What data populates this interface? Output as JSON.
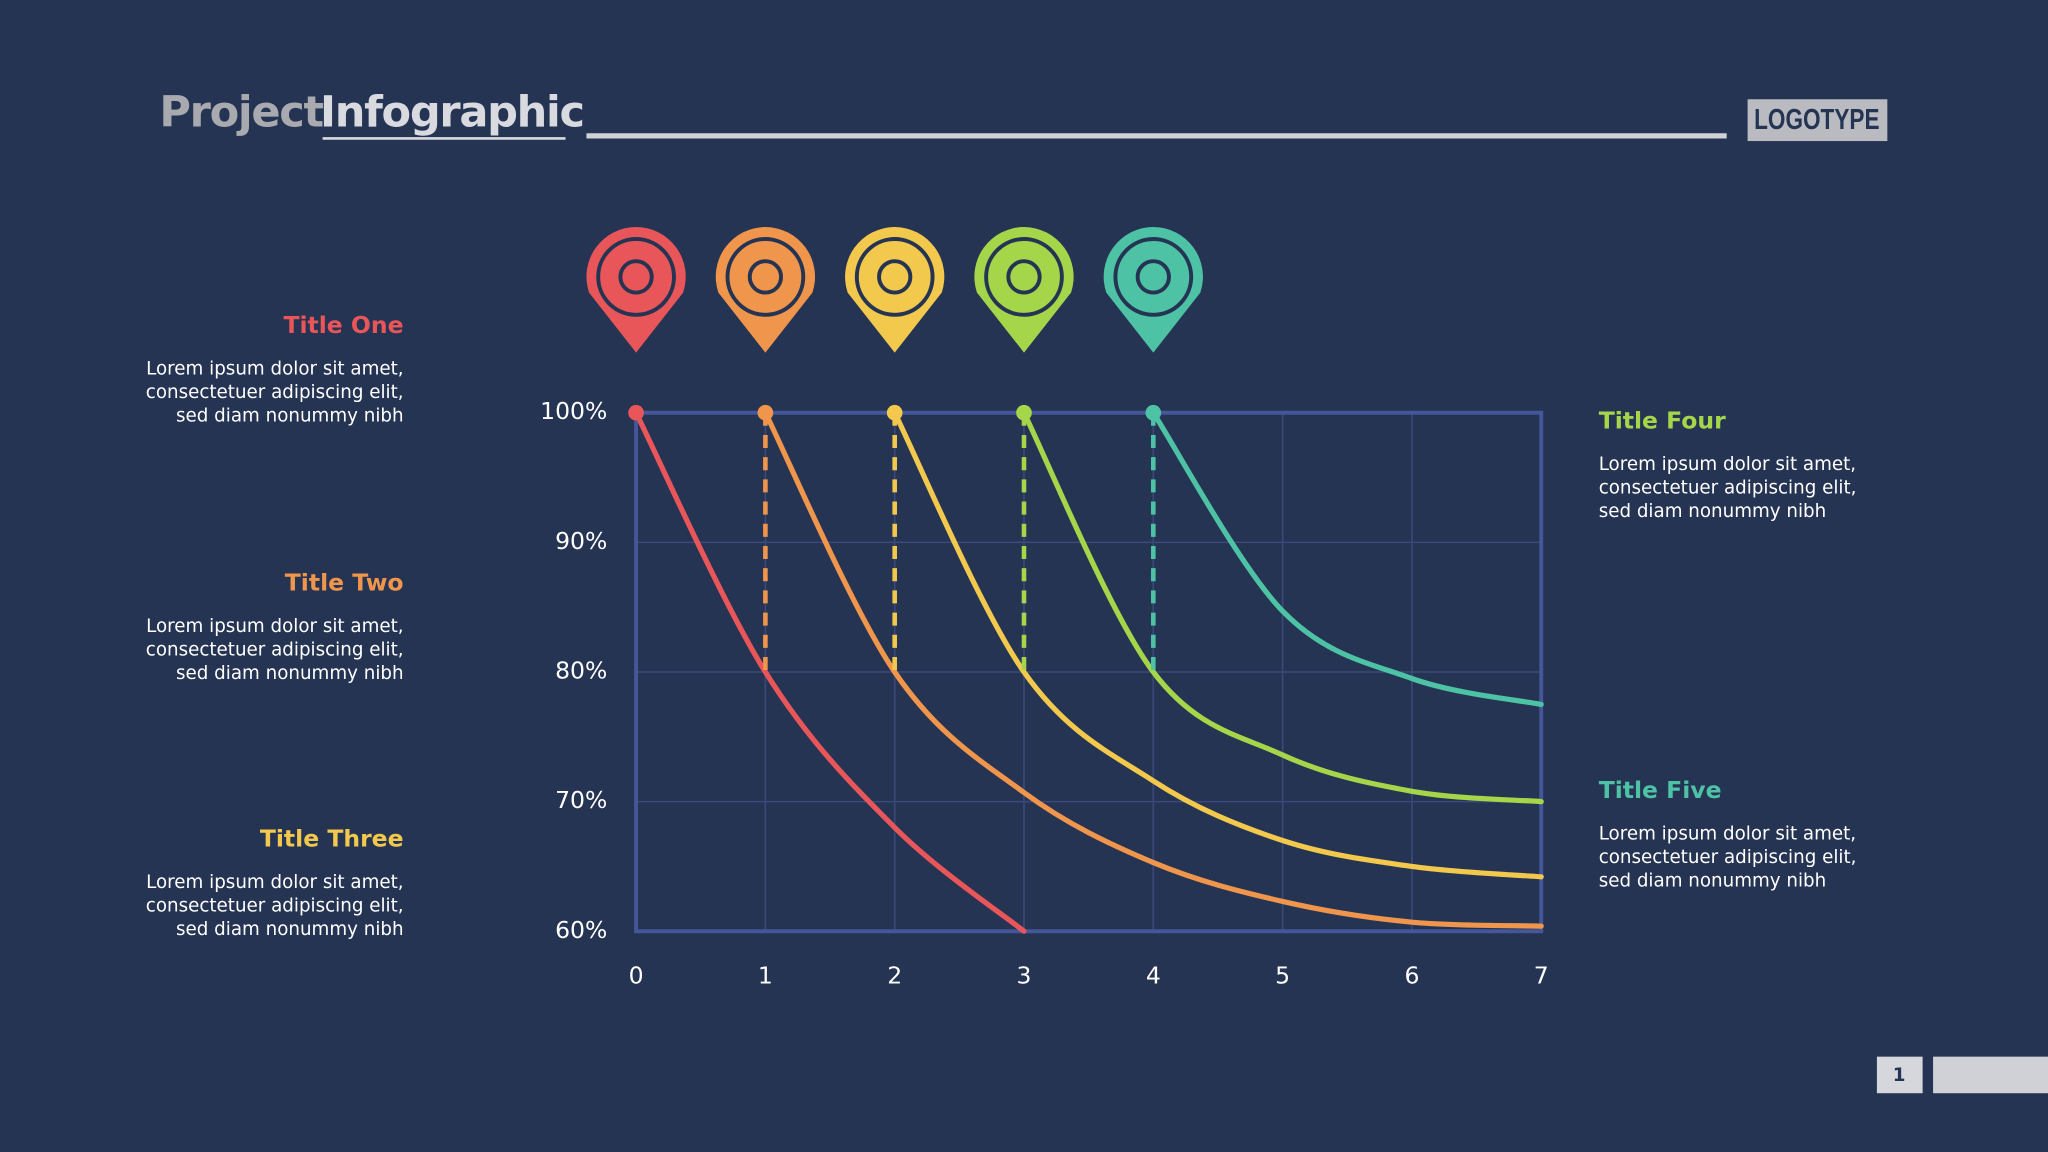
{
  "header": {
    "title_first": "Project",
    "title_second": "Infographic",
    "logotype": "LOGOTYPE"
  },
  "sections": [
    {
      "title": "Title One",
      "color": "#e9565a",
      "lines": [
        "Lorem ipsum dolor sit amet,",
        "consectetuer adipiscing elit,",
        "sed diam nonummy nibh"
      ]
    },
    {
      "title": "Title Two",
      "color": "#f0954c",
      "lines": [
        "Lorem ipsum dolor sit amet,",
        "consectetuer adipiscing elit,",
        "sed diam nonummy nibh"
      ]
    },
    {
      "title": "Title Three",
      "color": "#f2c94c",
      "lines": [
        "Lorem ipsum dolor sit amet,",
        "consectetuer adipiscing elit,",
        "sed diam nonummy nibh"
      ]
    },
    {
      "title": "Title Four",
      "color": "#a5d64a",
      "lines": [
        "Lorem ipsum dolor sit amet,",
        "consectetuer adipiscing elit,",
        "sed diam nonummy nibh"
      ]
    },
    {
      "title": "Title Five",
      "color": "#4dc2a5",
      "lines": [
        "Lorem ipsum dolor sit amet,",
        "consectetuer adipiscing elit,",
        "sed diam nonummy nibh"
      ]
    }
  ],
  "chart_data": {
    "type": "line",
    "x": [
      0,
      1,
      2,
      3,
      4,
      5,
      6,
      7
    ],
    "xlim": [
      0,
      7
    ],
    "xticks": [
      0,
      1,
      2,
      3,
      4,
      5,
      6,
      7
    ],
    "ylim": [
      60,
      100
    ],
    "yticks": [
      {
        "value": 60,
        "label": "60%"
      },
      {
        "value": 70,
        "label": "70%"
      },
      {
        "value": 80,
        "label": "80%"
      },
      {
        "value": 90,
        "label": "90%"
      },
      {
        "value": 100,
        "label": "100%"
      }
    ],
    "grid": true,
    "series": [
      {
        "color": "#e9565a",
        "values": [
          100,
          80,
          68,
          60,
          null,
          null,
          null,
          null
        ]
      },
      {
        "color": "#f0954c",
        "values": [
          null,
          100,
          80,
          70.7,
          65.3,
          62.3,
          60.7,
          60.4
        ]
      },
      {
        "color": "#f2c94c",
        "values": [
          null,
          null,
          100,
          80,
          71.6,
          67,
          65,
          64.2
        ]
      },
      {
        "color": "#a5d64a",
        "values": [
          null,
          null,
          null,
          100,
          80,
          73.6,
          70.8,
          70
        ]
      },
      {
        "color": "#4dc2a5",
        "values": [
          null,
          null,
          null,
          null,
          100,
          84.7,
          79.5,
          77.5
        ]
      }
    ]
  },
  "page_number": "1"
}
